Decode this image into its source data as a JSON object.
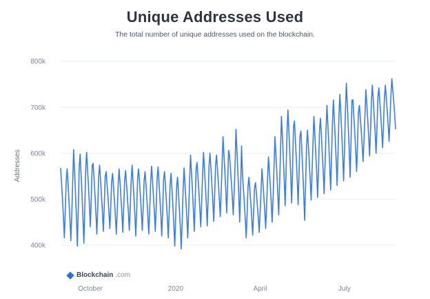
{
  "header": {
    "title": "Unique Addresses Used",
    "subtitle": "The total number of unique addresses used on the blockchain."
  },
  "brand": {
    "name": "Blockchain",
    "tld": ".com",
    "icon": "blockchain-logo-icon"
  },
  "colors": {
    "line": "#3b7de0",
    "grid": "#e9edf3",
    "text": "#2e3440"
  },
  "chart_data": {
    "type": "line",
    "title": "Unique Addresses Used",
    "xlabel": "",
    "ylabel": "Addresses",
    "ylim": [
      370000,
      810000
    ],
    "yticks": [
      {
        "value": 400000,
        "label": "400k"
      },
      {
        "value": 500000,
        "label": "500k"
      },
      {
        "value": 600000,
        "label": "600k"
      },
      {
        "value": 700000,
        "label": "700k"
      },
      {
        "value": 800000,
        "label": "800k"
      }
    ],
    "xlim": [
      "2019-08-30",
      "2020-08-25"
    ],
    "xticks": [
      {
        "date": "2019-10-01",
        "label": "October"
      },
      {
        "date": "2020-01-01",
        "label": "2020"
      },
      {
        "date": "2020-04-01",
        "label": "April"
      },
      {
        "date": "2020-07-01",
        "label": "July"
      }
    ],
    "grid": "horizontal",
    "series": [
      {
        "x": [
          "2019-08-30",
          "2019-09-06",
          "2019-09-13",
          "2019-09-20",
          "2019-09-27",
          "2019-10-04",
          "2019-10-11",
          "2019-10-18",
          "2019-10-25",
          "2019-11-01",
          "2019-11-08",
          "2019-11-15",
          "2019-11-22",
          "2019-11-29",
          "2019-12-06",
          "2019-12-13",
          "2019-12-20",
          "2019-12-27",
          "2020-01-03",
          "2020-01-10",
          "2020-01-17",
          "2020-01-24",
          "2020-01-31",
          "2020-02-07",
          "2020-02-14",
          "2020-02-21",
          "2020-02-28",
          "2020-03-06",
          "2020-03-13",
          "2020-03-20",
          "2020-03-27",
          "2020-04-03",
          "2020-04-10",
          "2020-04-17",
          "2020-04-24",
          "2020-05-01",
          "2020-05-08",
          "2020-05-15",
          "2020-05-22",
          "2020-05-29",
          "2020-06-05",
          "2020-06-12",
          "2020-06-19",
          "2020-06-26",
          "2020-07-03",
          "2020-07-10",
          "2020-07-17",
          "2020-07-24",
          "2020-07-31",
          "2020-08-07",
          "2020-08-14",
          "2020-08-21"
        ],
        "peaks": [
          568000,
          566000,
          608000,
          598000,
          602000,
          578000,
          574000,
          560000,
          556000,
          566000,
          562000,
          574000,
          566000,
          560000,
          572000,
          570000,
          560000,
          556000,
          548000,
          568000,
          596000,
          580000,
          602000,
          600000,
          596000,
          636000,
          596000,
          652000,
          552000,
          548000,
          536000,
          566000,
          592000,
          636000,
          680000,
          694000,
          670000,
          648000,
          650000,
          680000,
          676000,
          704000,
          716000,
          728000,
          752000,
          716000,
          704000,
          738000,
          748000,
          742000,
          748000,
          762000
        ],
        "troughs": [
          416000,
          410000,
          398000,
          404000,
          440000,
          424000,
          430000,
          436000,
          424000,
          428000,
          432000,
          420000,
          432000,
          424000,
          430000,
          420000,
          416000,
          398000,
          392000,
          416000,
          430000,
          440000,
          442000,
          452000,
          462000,
          470000,
          466000,
          450000,
          416000,
          422000,
          428000,
          436000,
          450000,
          466000,
          486000,
          492000,
          488000,
          454000,
          498000,
          504000,
          512000,
          520000,
          530000,
          540000,
          548000,
          560000,
          582000,
          594000,
          600000,
          612000,
          626000,
          652000
        ]
      }
    ]
  }
}
